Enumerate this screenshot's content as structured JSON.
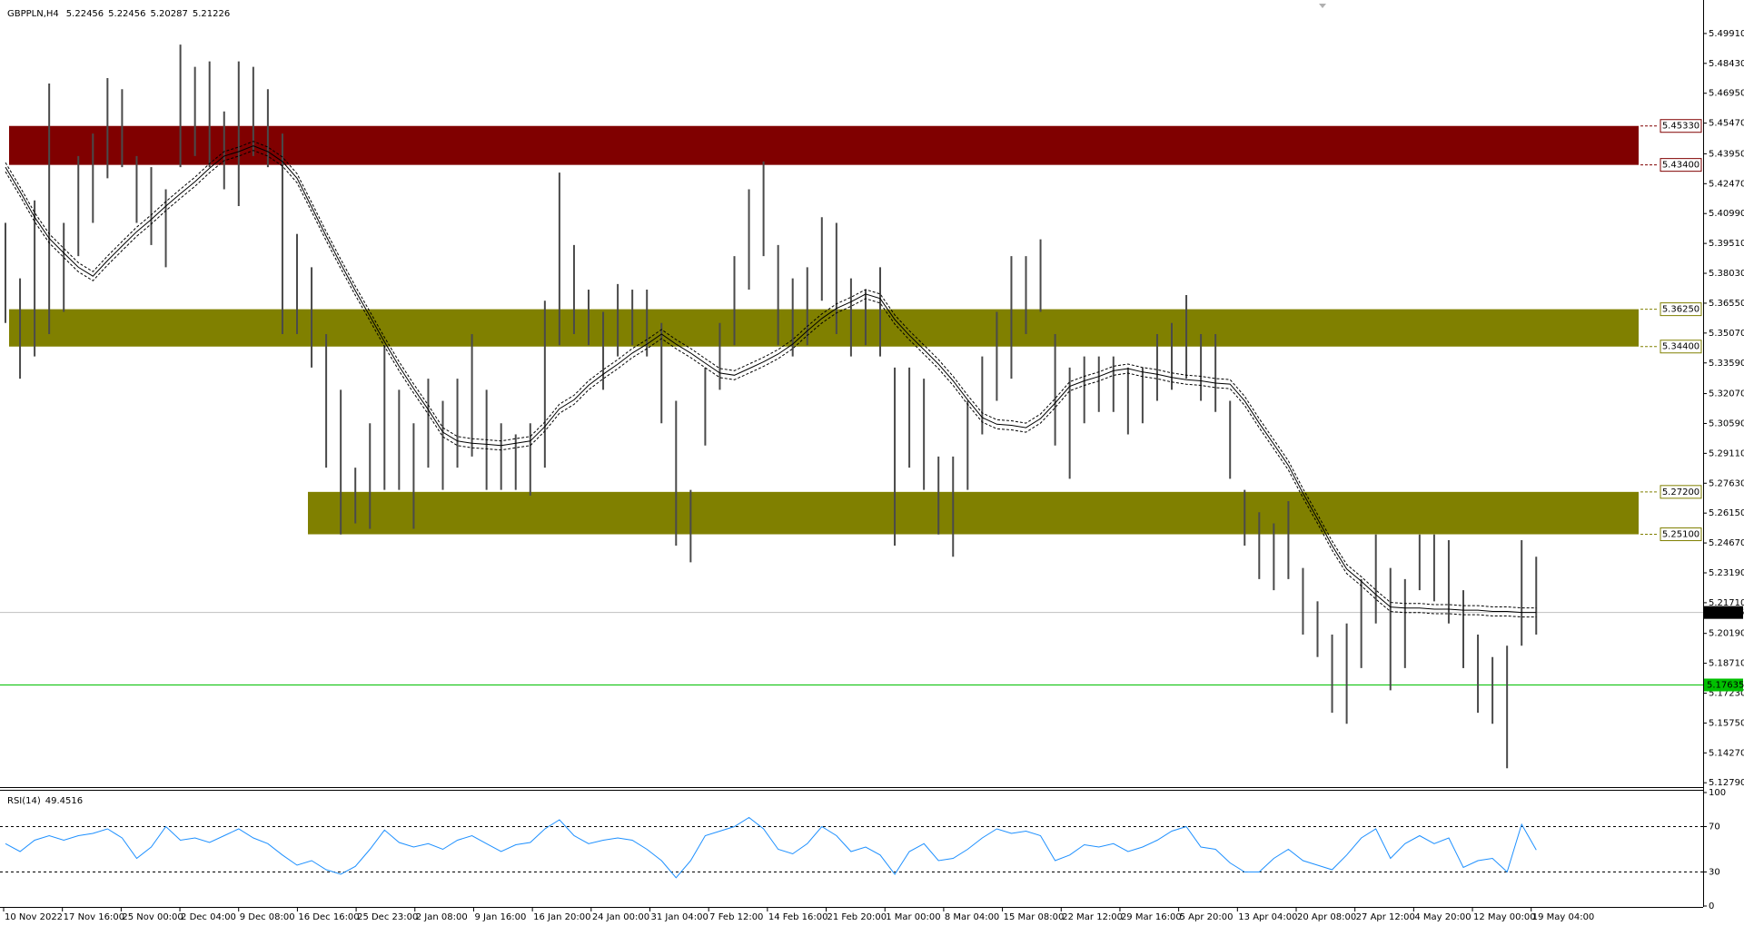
{
  "chart_data": {
    "type": "ohlc",
    "title": "GBPPLN,H4",
    "header_values": [
      5.22456,
      5.22456,
      5.20287,
      5.21226
    ],
    "color": "#4a4a4a",
    "ma_color": "#000000",
    "xtick_labels": [
      "10 Nov 2022",
      "17 Nov 16:00",
      "25 Nov 00:00",
      "2 Dec 04:00",
      "9 Dec 08:00",
      "16 Dec 16:00",
      "25 Dec 23:00",
      "2 Jan 08:00",
      "9 Jan 16:00",
      "16 Jan 20:00",
      "24 Jan 00:00",
      "31 Jan 04:00",
      "7 Feb 12:00",
      "14 Feb 16:00",
      "21 Feb 20:00",
      "1 Mar 00:00",
      "8 Mar 04:00",
      "15 Mar 08:00",
      "22 Mar 12:00",
      "29 Mar 16:00",
      "5 Apr 20:00",
      "13 Apr 04:00",
      "20 Apr 08:00",
      "27 Apr 12:00",
      "4 May 20:00",
      "12 May 00:00",
      "19 May 04:00"
    ],
    "high": [
      5.4053,
      5.3778,
      5.4164,
      5.4743,
      5.4053,
      5.4384,
      5.4495,
      5.477,
      5.4715,
      5.4384,
      5.4329,
      5.4219,
      5.4936,
      5.4826,
      5.4853,
      5.4605,
      5.4853,
      5.4826,
      5.4715,
      5.4495,
      5.3998,
      5.3833,
      5.3502,
      5.3226,
      5.284,
      5.306,
      5.3447,
      5.3226,
      5.306,
      5.3281,
      5.3171,
      5.3281,
      5.3502,
      5.3226,
      5.306,
      5.3005,
      5.306,
      5.3667,
      5.4302,
      5.3943,
      5.3722,
      5.3612,
      5.375,
      5.3722,
      5.3722,
      5.3557,
      5.3171,
      5.273,
      5.3336,
      5.3557,
      5.3888,
      5.4219,
      5.4357,
      5.3943,
      5.3778,
      5.3833,
      5.4081,
      5.4053,
      5.3778,
      5.3722,
      5.3833,
      5.3336,
      5.3336,
      5.3281,
      5.2895,
      5.2895,
      5.3171,
      5.3391,
      5.3612,
      5.3888,
      5.3888,
      5.3971,
      5.3502,
      5.3336,
      5.3391,
      5.3391,
      5.3391,
      5.3336,
      5.3336,
      5.3502,
      5.3557,
      5.3695,
      5.3502,
      5.3502,
      5.3171,
      5.273,
      5.2619,
      5.2564,
      5.2674,
      5.2343,
      5.2178,
      5.2013,
      5.2068,
      5.2288,
      5.2509,
      5.2343,
      5.2288,
      5.2509,
      5.2509,
      5.2481,
      5.2233,
      5.2013,
      5.1902,
      5.1958,
      5.2481,
      5.2399
    ],
    "low": [
      5.3557,
      5.3281,
      5.3391,
      5.3502,
      5.3612,
      5.3888,
      5.4053,
      5.4274,
      5.4329,
      5.4053,
      5.3943,
      5.3833,
      5.4329,
      5.4384,
      5.4329,
      5.4219,
      5.4136,
      5.4384,
      5.4329,
      5.3502,
      5.3502,
      5.3336,
      5.284,
      5.2509,
      5.2564,
      5.2537,
      5.273,
      5.273,
      5.2537,
      5.284,
      5.273,
      5.284,
      5.2895,
      5.273,
      5.273,
      5.273,
      5.2702,
      5.284,
      5.3447,
      5.3502,
      5.3447,
      5.3226,
      5.3391,
      5.3447,
      5.3391,
      5.306,
      5.2454,
      5.2371,
      5.295,
      5.3226,
      5.3447,
      5.3722,
      5.3888,
      5.3447,
      5.3391,
      5.3447,
      5.3667,
      5.3502,
      5.3391,
      5.3447,
      5.3391,
      5.2454,
      5.284,
      5.273,
      5.2509,
      5.2399,
      5.273,
      5.3005,
      5.3171,
      5.3281,
      5.3502,
      5.3612,
      5.295,
      5.2785,
      5.306,
      5.3116,
      5.3116,
      5.3005,
      5.306,
      5.3171,
      5.3226,
      5.3281,
      5.3171,
      5.3116,
      5.2785,
      5.2454,
      5.2288,
      5.2233,
      5.2288,
      5.2013,
      5.1902,
      5.1626,
      5.1571,
      5.1847,
      5.2068,
      5.1737,
      5.1847,
      5.2233,
      5.2178,
      5.2068,
      5.1847,
      5.1626,
      5.1571,
      5.1351,
      5.1958,
      5.2013
    ],
    "ma": [
      5.4329,
      5.4208,
      5.4081,
      5.3976,
      5.3904,
      5.3833,
      5.3789,
      5.3866,
      5.3938,
      5.4009,
      5.407,
      5.4136,
      5.4197,
      5.4257,
      5.4324,
      5.4384,
      5.4406,
      5.4434,
      5.4406,
      5.4357,
      5.4274,
      5.4131,
      5.3987,
      5.3849,
      5.3717,
      5.359,
      5.3463,
      5.3342,
      5.3232,
      5.3127,
      5.3016,
      5.2972,
      5.2961,
      5.2956,
      5.295,
      5.2961,
      5.2972,
      5.3044,
      5.3132,
      5.3176,
      5.3248,
      5.3303,
      5.3353,
      5.3408,
      5.3452,
      5.3502,
      5.3452,
      5.3408,
      5.3358,
      5.3309,
      5.3298,
      5.3331,
      5.3364,
      5.3403,
      5.3452,
      5.3518,
      5.3579,
      5.3629,
      5.3662,
      5.37,
      5.3678,
      5.3574,
      5.3496,
      5.3425,
      5.3353,
      5.327,
      5.3176,
      5.3088,
      5.3055,
      5.305,
      5.3038,
      5.3083,
      5.316,
      5.3243,
      5.327,
      5.3292,
      5.332,
      5.3331,
      5.3314,
      5.3303,
      5.3287,
      5.3276,
      5.327,
      5.3259,
      5.3254,
      5.3171,
      5.306,
      5.2956,
      5.2851,
      5.2713,
      5.2586,
      5.2454,
      5.2338,
      5.2277,
      5.2211,
      5.215,
      5.2145,
      5.2145,
      5.2139,
      5.2139,
      5.2134,
      5.2134,
      5.2128,
      5.2128,
      5.2123,
      5.2123
    ],
    "ylim": [
      5.1262,
      5.5112
    ],
    "yticks": [
      {
        "value": 5.4991,
        "label": "5.49910"
      },
      {
        "value": 5.4843,
        "label": "5.48430"
      },
      {
        "value": 5.4695,
        "label": "5.46950"
      },
      {
        "value": 5.4547,
        "label": "5.45470"
      },
      {
        "value": 5.4395,
        "label": "5.43950"
      },
      {
        "value": 5.4247,
        "label": "5.42470"
      },
      {
        "value": 5.4099,
        "label": "5.40990"
      },
      {
        "value": 5.3951,
        "label": "5.39510"
      },
      {
        "value": 5.3803,
        "label": "5.38030"
      },
      {
        "value": 5.3655,
        "label": "5.36550"
      },
      {
        "value": 5.3507,
        "label": "5.35070"
      },
      {
        "value": 5.3359,
        "label": "5.33590"
      },
      {
        "value": 5.3207,
        "label": "5.32070"
      },
      {
        "value": 5.3059,
        "label": "5.30590"
      },
      {
        "value": 5.2911,
        "label": "5.29110"
      },
      {
        "value": 5.2763,
        "label": "5.27630"
      },
      {
        "value": 5.2615,
        "label": "5.26150"
      },
      {
        "value": 5.2467,
        "label": "5.24670"
      },
      {
        "value": 5.2319,
        "label": "5.23190"
      },
      {
        "value": 5.2171,
        "label": "5.21710"
      },
      {
        "value": 5.2019,
        "label": "5.20190"
      },
      {
        "value": 5.1871,
        "label": "5.18710"
      },
      {
        "value": 5.1723,
        "label": "5.17230"
      },
      {
        "value": 5.1575,
        "label": "5.15750"
      },
      {
        "value": 5.1427,
        "label": "5.14270"
      },
      {
        "value": 5.1279,
        "label": "5.12790"
      }
    ],
    "zones": [
      {
        "color": "#800000",
        "top": {
          "value": 5.4533,
          "label": "5.45330"
        },
        "bottom": {
          "value": 5.434,
          "label": "5.43400"
        }
      },
      {
        "color": "#808000",
        "top": {
          "value": 5.3625,
          "label": "5.36250"
        },
        "bottom": {
          "value": 5.344,
          "label": "5.34400"
        }
      },
      {
        "color": "#808000",
        "top": {
          "value": 5.272,
          "label": "5.27200"
        },
        "bottom": {
          "value": 5.251,
          "label": "5.25100"
        }
      }
    ],
    "lines": [
      {
        "value": 5.21226,
        "color": "#c0c0c0",
        "label_bg": "#000000"
      },
      {
        "value": 5.17635,
        "color": "#00c000",
        "label_bg": "#00c000"
      }
    ],
    "rsi": {
      "type": "line",
      "title": "RSI(14)",
      "color": "#1e90ff",
      "ylim": [
        0,
        100
      ],
      "yticks": [
        100,
        70,
        30,
        0
      ],
      "values": [
        55,
        48,
        58,
        62,
        58,
        62,
        64,
        68,
        60,
        42,
        52,
        70,
        58,
        60,
        56,
        62,
        68,
        60,
        55,
        45,
        36,
        40,
        32,
        28,
        35,
        50,
        67,
        56,
        52,
        55,
        50,
        58,
        62,
        55,
        48,
        54,
        56,
        68,
        76,
        62,
        55,
        58,
        60,
        58,
        50,
        40,
        25,
        40,
        62,
        66,
        70,
        78,
        68,
        50,
        46,
        55,
        70,
        62,
        48,
        52,
        45,
        28,
        48,
        55,
        40,
        42,
        50,
        60,
        68,
        64,
        66,
        62,
        40,
        45,
        54,
        52,
        55,
        48,
        52,
        58,
        66,
        70,
        52,
        50,
        38,
        30,
        30,
        42,
        50,
        40,
        36,
        32,
        45,
        60,
        68,
        42,
        55,
        62,
        55,
        60,
        34,
        40,
        42,
        30,
        72,
        49.4516
      ]
    }
  }
}
